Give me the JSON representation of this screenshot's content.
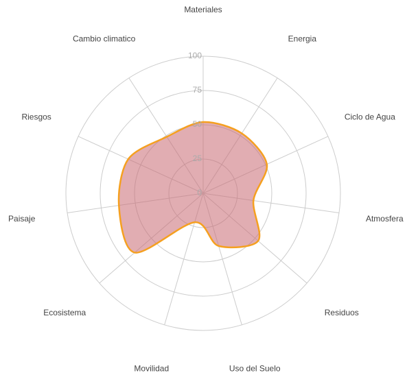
{
  "chart_data": {
    "type": "radar",
    "categories": [
      "Materiales",
      "Energia",
      "Ciclo de Agua",
      "Atmosfera",
      "Residuos",
      "Uso del Suelo",
      "Movilidad",
      "Ecosistema",
      "Paisaje",
      "Riesgos",
      "Cambio climatico"
    ],
    "values": [
      52,
      52,
      51,
      37,
      53,
      40,
      22,
      66,
      62,
      60,
      49
    ],
    "color": "#f5a020",
    "fill": "#c86a72",
    "rlim": [
      0,
      100
    ],
    "rticks": [
      0,
      25,
      50,
      75,
      100
    ],
    "grid": true
  }
}
